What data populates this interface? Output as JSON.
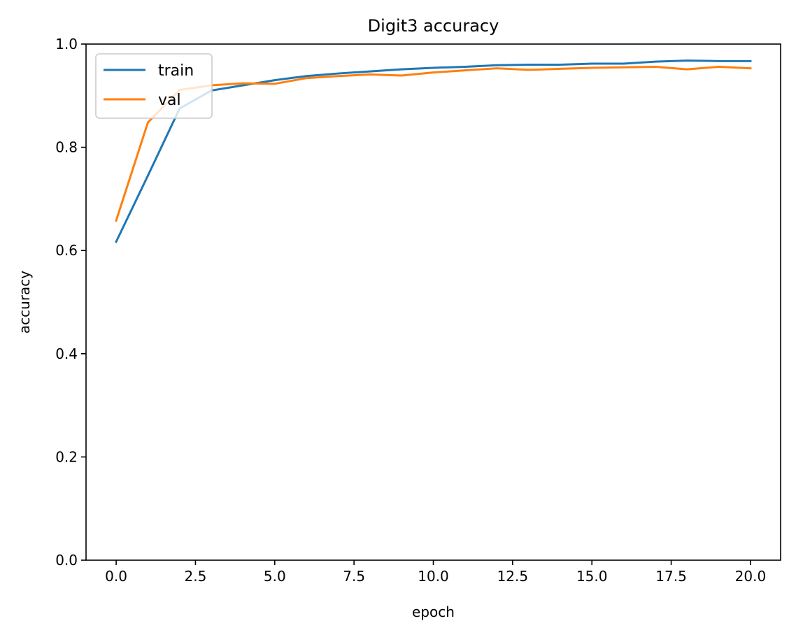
{
  "chart_data": {
    "type": "line",
    "title": "Digit3 accuracy",
    "xlabel": "epoch",
    "ylabel": "accuracy",
    "xlim": [
      -0.95,
      20.95
    ],
    "ylim": [
      0.0,
      1.0
    ],
    "xticks": [
      0.0,
      2.5,
      5.0,
      7.5,
      10.0,
      12.5,
      15.0,
      17.5,
      20.0
    ],
    "xtick_labels": [
      "0.0",
      "2.5",
      "5.0",
      "7.5",
      "10.0",
      "12.5",
      "15.0",
      "17.5",
      "20.0"
    ],
    "yticks": [
      0.0,
      0.2,
      0.4,
      0.6,
      0.8,
      1.0
    ],
    "ytick_labels": [
      "0.0",
      "0.2",
      "0.4",
      "0.6",
      "0.8",
      "1.0"
    ],
    "grid": false,
    "legend_position": "top-left",
    "x": [
      0,
      1,
      2,
      3,
      4,
      5,
      6,
      7,
      8,
      9,
      10,
      11,
      12,
      13,
      14,
      15,
      16,
      17,
      18,
      19,
      20
    ],
    "series": [
      {
        "name": "train",
        "color": "#1f77b4",
        "values": [
          0.617,
          0.745,
          0.875,
          0.91,
          0.92,
          0.93,
          0.938,
          0.943,
          0.947,
          0.951,
          0.954,
          0.956,
          0.959,
          0.96,
          0.96,
          0.962,
          0.962,
          0.966,
          0.968,
          0.967,
          0.967
        ]
      },
      {
        "name": "val",
        "color": "#ff7f0e",
        "values": [
          0.658,
          0.848,
          0.911,
          0.92,
          0.924,
          0.923,
          0.934,
          0.938,
          0.941,
          0.939,
          0.945,
          0.949,
          0.953,
          0.95,
          0.952,
          0.954,
          0.955,
          0.956,
          0.951,
          0.956,
          0.953
        ]
      }
    ]
  }
}
